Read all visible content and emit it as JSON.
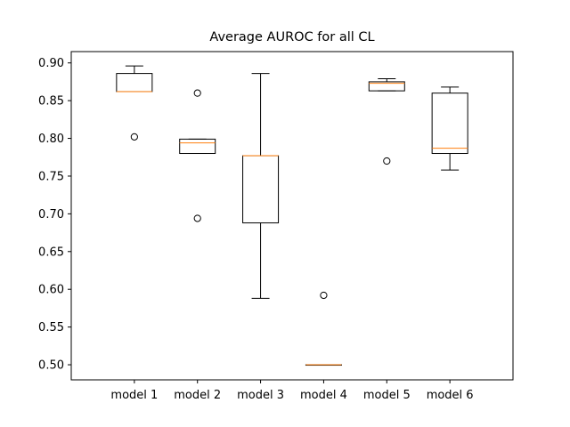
{
  "chart_data": {
    "type": "box",
    "title": "Average AUROC for all CL",
    "xlabel": "",
    "ylabel": "",
    "ylim": [
      0.48,
      0.915
    ],
    "yticks": [
      0.5,
      0.55,
      0.6,
      0.65,
      0.7,
      0.75,
      0.8,
      0.85,
      0.9
    ],
    "ytick_labels": [
      "0.50",
      "0.55",
      "0.60",
      "0.65",
      "0.70",
      "0.75",
      "0.80",
      "0.85",
      "0.90"
    ],
    "grid": false,
    "categories": [
      "model 1",
      "model 2",
      "model 3",
      "model 4",
      "model 5",
      "model 6"
    ],
    "boxes": [
      {
        "whislo": 0.862,
        "q1": 0.862,
        "median": 0.862,
        "q3": 0.886,
        "whishi": 0.896,
        "fliers": [
          0.802
        ]
      },
      {
        "whislo": 0.78,
        "q1": 0.78,
        "median": 0.794,
        "q3": 0.799,
        "whishi": 0.799,
        "fliers": [
          0.86,
          0.694
        ]
      },
      {
        "whislo": 0.588,
        "q1": 0.688,
        "median": 0.777,
        "q3": 0.777,
        "whishi": 0.886,
        "fliers": []
      },
      {
        "whislo": 0.5,
        "q1": 0.5,
        "median": 0.5,
        "q3": 0.5,
        "whishi": 0.5,
        "fliers": [
          0.592
        ]
      },
      {
        "whislo": 0.863,
        "q1": 0.863,
        "median": 0.873,
        "q3": 0.875,
        "whishi": 0.879,
        "fliers": [
          0.77
        ]
      },
      {
        "whislo": 0.758,
        "q1": 0.78,
        "median": 0.787,
        "q3": 0.86,
        "whishi": 0.868,
        "fliers": []
      }
    ],
    "colors": {
      "box": "#000000",
      "median": "#ff7f0e",
      "flier": "#000000"
    }
  }
}
